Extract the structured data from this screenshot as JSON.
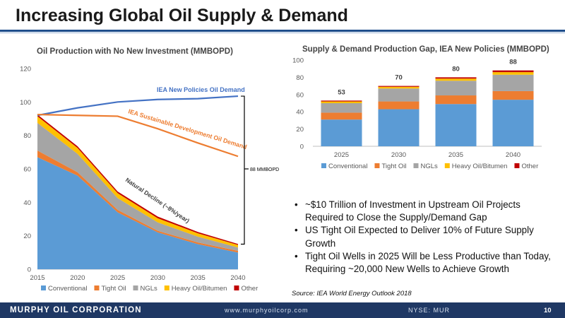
{
  "header": {
    "title": "Increasing Global Oil Supply & Demand"
  },
  "chart_data": [
    {
      "type": "area",
      "title": "Oil Production with No New Investment (MMBOPD)",
      "x": [
        2015,
        2020,
        2025,
        2030,
        2035,
        2040
      ],
      "xlim": [
        2015,
        2040
      ],
      "ylim": [
        0,
        120
      ],
      "y_ticks": [
        0,
        20,
        40,
        60,
        80,
        100,
        120
      ],
      "stacked": true,
      "series": [
        {
          "name": "Conventional",
          "values": [
            67,
            56,
            34,
            22,
            15,
            10
          ],
          "color": "#5b9bd5"
        },
        {
          "name": "Tight Oil",
          "values": [
            4,
            2,
            1.5,
            1,
            1,
            1
          ],
          "color": "#ed7d31"
        },
        {
          "name": "NGLs",
          "values": [
            16.5,
            11,
            7,
            5,
            3.5,
            2
          ],
          "color": "#a5a5a5"
        },
        {
          "name": "Heavy Oil/Bitumen",
          "values": [
            4,
            3.5,
            3,
            2.5,
            2,
            1.5
          ],
          "color": "#ffc000"
        },
        {
          "name": "Other",
          "values": [
            1,
            1,
            1,
            1,
            0.8,
            0.6
          ],
          "color": "#c00000"
        }
      ],
      "lines": [
        {
          "name": "IEA New Policies Oil Demand",
          "values": [
            92,
            96.5,
            100,
            101.5,
            102,
            103.5
          ],
          "color": "#4472c4"
        },
        {
          "name": "IEA Sustainable Development Oil Demand",
          "values": [
            92.5,
            92,
            91.5,
            84,
            75.5,
            67.5
          ],
          "color": "#ed7d31"
        }
      ],
      "annotations": {
        "natural_decline": "Natural Decline (~8%/year)",
        "gap_label": "88 MMBOPD"
      },
      "legend_position": "bottom"
    },
    {
      "type": "bar",
      "title": "Supply & Demand Production Gap, IEA New Policies (MMBOPD)",
      "categories": [
        "2025",
        "2030",
        "2035",
        "2040"
      ],
      "ylim": [
        0,
        100
      ],
      "y_ticks": [
        0,
        20,
        40,
        60,
        80,
        100
      ],
      "stacked": true,
      "series": [
        {
          "name": "Conventional",
          "values": [
            31,
            43,
            49,
            54
          ],
          "color": "#5b9bd5"
        },
        {
          "name": "Tight Oil",
          "values": [
            8,
            9,
            10,
            10
          ],
          "color": "#ed7d31"
        },
        {
          "name": "NGLs",
          "values": [
            11,
            15,
            17,
            19
          ],
          "color": "#a5a5a5"
        },
        {
          "name": "Heavy Oil/Bitumen",
          "values": [
            2,
            2,
            2.5,
            3
          ],
          "color": "#ffc000"
        },
        {
          "name": "Other",
          "values": [
            1,
            1,
            1.5,
            2
          ],
          "color": "#c00000"
        }
      ],
      "totals": [
        53,
        70,
        80,
        88
      ],
      "legend_position": "bottom"
    }
  ],
  "bullets": [
    "~$10 Trillion of Investment in Upstream Oil Projects Required to Close the Supply/Demand Gap",
    "US Tight Oil Expected to Deliver 10% of Future Supply Growth",
    "Tight Oil Wells in 2025 Will be Less Productive than Today, Requiring ~20,000 New Wells to Achieve Growth"
  ],
  "source": "Source: IEA World Energy Outlook 2018",
  "footer": {
    "company": "MURPHY OIL CORPORATION",
    "website": "www.murphyoilcorp.com",
    "ticker": "NYSE: MUR",
    "page": "10"
  }
}
